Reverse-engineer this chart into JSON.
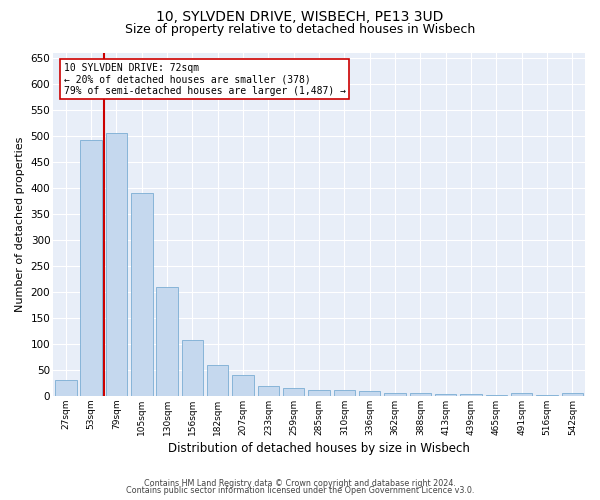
{
  "title": "10, SYLVDEN DRIVE, WISBECH, PE13 3UD",
  "subtitle": "Size of property relative to detached houses in Wisbech",
  "xlabel": "Distribution of detached houses by size in Wisbech",
  "ylabel": "Number of detached properties",
  "categories": [
    "27sqm",
    "53sqm",
    "79sqm",
    "105sqm",
    "130sqm",
    "156sqm",
    "182sqm",
    "207sqm",
    "233sqm",
    "259sqm",
    "285sqm",
    "310sqm",
    "336sqm",
    "362sqm",
    "388sqm",
    "413sqm",
    "439sqm",
    "465sqm",
    "491sqm",
    "516sqm",
    "542sqm"
  ],
  "values": [
    30,
    492,
    505,
    390,
    210,
    107,
    60,
    40,
    19,
    15,
    12,
    11,
    9,
    6,
    5,
    4,
    4,
    1,
    5,
    1,
    5
  ],
  "bar_color": "#c5d8ee",
  "bar_edge_color": "#7aadd4",
  "vline_color": "#cc0000",
  "annotation_text": "10 SYLVDEN DRIVE: 72sqm\n← 20% of detached houses are smaller (378)\n79% of semi-detached houses are larger (1,487) →",
  "annotation_box_color": "#ffffff",
  "annotation_box_edge": "#cc0000",
  "ylim": [
    0,
    660
  ],
  "yticks": [
    0,
    50,
    100,
    150,
    200,
    250,
    300,
    350,
    400,
    450,
    500,
    550,
    600,
    650
  ],
  "background_color": "#e8eef8",
  "title_fontsize": 10,
  "subtitle_fontsize": 9,
  "ylabel_fontsize": 8,
  "xlabel_fontsize": 8.5,
  "footnote1": "Contains HM Land Registry data © Crown copyright and database right 2024.",
  "footnote2": "Contains public sector information licensed under the Open Government Licence v3.0."
}
